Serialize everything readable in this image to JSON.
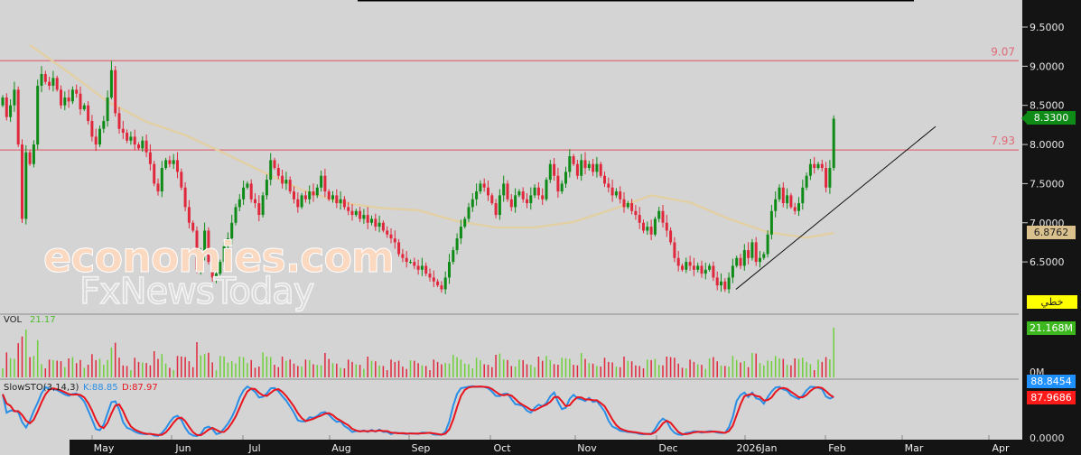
{
  "chart_data": {
    "type": "candlestick",
    "title": "",
    "price_axis": {
      "ticks": [
        "9.5000",
        "9.0000",
        "8.5000",
        "8.0000",
        "7.5000",
        "7.0000",
        "6.5000"
      ],
      "ylim": [
        5.9,
        9.95
      ]
    },
    "x_ticks": [
      "May",
      "Jun",
      "Jul",
      "Aug",
      "Sep",
      "Oct",
      "Nov",
      "Dec",
      "2026Jan",
      "Feb",
      "Mar",
      "Apr"
    ],
    "close": [
      8.6,
      8.35,
      8.5,
      8.7,
      8.0,
      7.05,
      7.9,
      7.75,
      8.0,
      8.75,
      8.9,
      8.8,
      8.75,
      8.85,
      8.7,
      8.5,
      8.6,
      8.55,
      8.7,
      8.65,
      8.45,
      8.5,
      8.3,
      8.1,
      8.0,
      8.2,
      8.3,
      8.6,
      8.95,
      8.4,
      8.2,
      8.15,
      8.05,
      8.1,
      8.0,
      7.95,
      8.05,
      7.9,
      7.75,
      7.5,
      7.4,
      7.7,
      7.8,
      7.75,
      7.8,
      7.65,
      7.45,
      7.2,
      7.0,
      6.9,
      6.4,
      6.6,
      6.9,
      6.5,
      6.3,
      6.35,
      6.5,
      6.7,
      6.8,
      7.0,
      7.2,
      7.3,
      7.45,
      7.5,
      7.3,
      7.25,
      7.1,
      7.35,
      7.55,
      7.8,
      7.7,
      7.6,
      7.5,
      7.55,
      7.4,
      7.3,
      7.2,
      7.35,
      7.3,
      7.4,
      7.35,
      7.45,
      7.6,
      7.4,
      7.3,
      7.35,
      7.25,
      7.3,
      7.2,
      7.15,
      7.1,
      7.15,
      7.05,
      7.1,
      7.0,
      7.05,
      6.95,
      7.0,
      6.9,
      6.85,
      6.8,
      6.75,
      6.6,
      6.55,
      6.5,
      6.5,
      6.45,
      6.4,
      6.45,
      6.35,
      6.3,
      6.25,
      6.2,
      6.15,
      6.3,
      6.5,
      6.65,
      6.8,
      6.95,
      7.05,
      7.2,
      7.3,
      7.4,
      7.5,
      7.45,
      7.35,
      7.25,
      7.1,
      7.35,
      7.5,
      7.3,
      7.2,
      7.35,
      7.4,
      7.3,
      7.25,
      7.35,
      7.45,
      7.35,
      7.3,
      7.55,
      7.75,
      7.6,
      7.4,
      7.5,
      7.65,
      7.85,
      7.75,
      7.6,
      7.8,
      7.7,
      7.75,
      7.65,
      7.75,
      7.6,
      7.5,
      7.45,
      7.35,
      7.4,
      7.3,
      7.2,
      7.25,
      7.15,
      7.1,
      7.0,
      6.9,
      6.95,
      6.85,
      7.05,
      7.15,
      7.0,
      6.9,
      6.75,
      6.55,
      6.45,
      6.4,
      6.5,
      6.45,
      6.4,
      6.45,
      6.35,
      6.4,
      6.45,
      6.3,
      6.2,
      6.25,
      6.15,
      6.3,
      6.45,
      6.55,
      6.45,
      6.65,
      6.55,
      6.75,
      6.5,
      6.55,
      6.6,
      6.85,
      7.15,
      7.3,
      7.45,
      7.25,
      7.35,
      7.2,
      7.15,
      7.25,
      7.45,
      7.6,
      7.75,
      7.7,
      7.75,
      7.7,
      7.45,
      7.7,
      8.33
    ],
    "moving_average": {
      "values": [
        9.27,
        8.92,
        8.55,
        8.29,
        8.12,
        7.89,
        7.65,
        7.42,
        7.26,
        7.19,
        7.16,
        7.02,
        6.94,
        6.94,
        7.01,
        7.17,
        7.35,
        7.26,
        7.05,
        6.88,
        6.81,
        6.87
      ],
      "last": "6.8762",
      "color": "#e3cf9f"
    },
    "horizontal_levels": [
      {
        "value": 9.07,
        "label": "9.07"
      },
      {
        "value": 7.93,
        "label": "7.93"
      }
    ],
    "trendline": {
      "from": 6.15,
      "to": 8.23
    },
    "last_price": "8.3300",
    "line_tag": "خطي",
    "volume": {
      "label": "VOL",
      "value": "21.17",
      "last": "21.168M",
      "zero_label": "0M"
    },
    "stochastic": {
      "label": "SlowSTO(3,14,3)",
      "k_label": "K:88.85",
      "d_label": "D:87.97",
      "k_last": "88.8454",
      "d_last": "87.9686",
      "zero_label": "0.0000"
    },
    "colors": {
      "up": "#0e8a17",
      "down": "#e0283c",
      "vol_up": "#6fcf3a",
      "vol_down": "#e0283c",
      "k": "#2a8fe6",
      "d": "#e8141e",
      "level": "#e06a78",
      "last_price": "#0e8a17",
      "vol_tag": "#3cb71e",
      "k_tag": "#1e90ff",
      "d_tag": "#ff1a1a",
      "ma_tag": "#d9c08c",
      "line_tag": "#ffff00"
    }
  },
  "watermark": {
    "line1": "economies.com",
    "line2": "FxNewsToday"
  }
}
